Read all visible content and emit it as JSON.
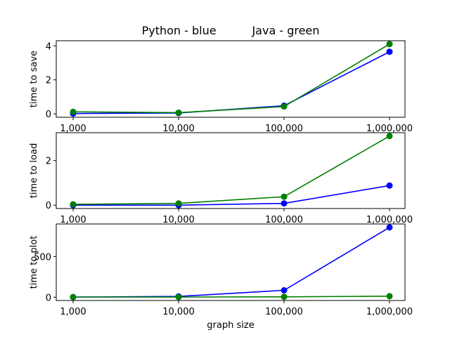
{
  "figure": {
    "title": "Python - blue          Java - green",
    "xlabel": "graph size"
  },
  "chart_data": [
    {
      "type": "line",
      "ylabel": "time to save",
      "categories": [
        "1,000",
        "10,000",
        "100,000",
        "1,000,000"
      ],
      "ylim": [
        -0.2,
        4.3
      ],
      "yticks": [
        0,
        2,
        4
      ],
      "yticklabels": [
        "0",
        "2",
        "4"
      ],
      "series": [
        {
          "color": "#0000ff",
          "values": [
            0.02,
            0.05,
            0.48,
            3.65
          ]
        },
        {
          "color": "#008000",
          "values": [
            0.12,
            0.07,
            0.43,
            4.1
          ]
        }
      ]
    },
    {
      "type": "line",
      "ylabel": "time to load",
      "categories": [
        "1,000",
        "10,000",
        "100,000",
        "1,000,000"
      ],
      "ylim": [
        -0.15,
        3.25
      ],
      "yticks": [
        0,
        2
      ],
      "yticklabels": [
        "0",
        "2"
      ],
      "series": [
        {
          "color": "#0000ff",
          "values": [
            0.0,
            0.0,
            0.08,
            0.88
          ]
        },
        {
          "color": "#008000",
          "values": [
            0.04,
            0.08,
            0.38,
            3.1
          ]
        }
      ]
    },
    {
      "type": "line",
      "ylabel": "time to plot",
      "categories": [
        "1,000",
        "10,000",
        "100,000",
        "1,000,000"
      ],
      "ylim": [
        -40,
        900
      ],
      "yticks": [
        0,
        500
      ],
      "yticklabels": [
        "0",
        "500"
      ],
      "series": [
        {
          "color": "#0000ff",
          "values": [
            2,
            10,
            85,
            858
          ]
        },
        {
          "color": "#008000",
          "values": [
            2,
            2,
            5,
            13
          ]
        }
      ]
    }
  ]
}
